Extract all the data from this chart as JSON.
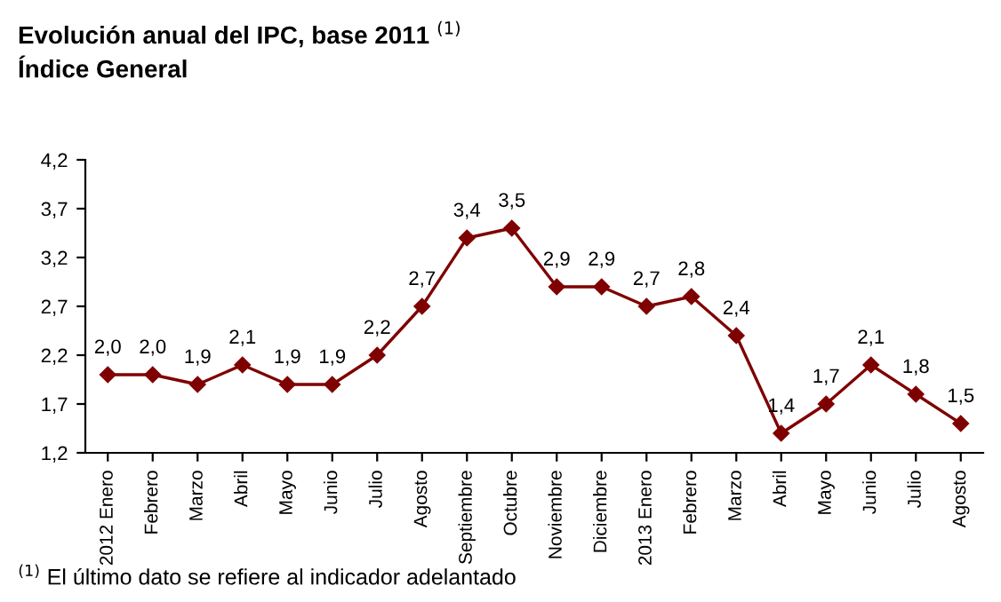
{
  "chart_data": {
    "type": "line",
    "title": "Evolución anual del IPC, base 2011 $^{(1)}$",
    "subtitle": "Índice General",
    "categories": [
      "2012 Enero",
      "Febrero",
      "Marzo",
      "Abril",
      "Mayo",
      "Junio",
      "Julio",
      "Agosto",
      "Septiembre",
      "Octubre",
      "Noviembre",
      "Diciembre",
      "2013 Enero",
      "Febrero",
      "Marzo",
      "Abril",
      "Mayo",
      "Junio",
      "Julio",
      "Agosto"
    ],
    "series": [
      {
        "color": "#7f0000",
        "values": [
          2.0,
          2.0,
          1.9,
          2.1,
          1.9,
          1.9,
          2.2,
          2.7,
          3.4,
          3.5,
          2.9,
          2.9,
          2.7,
          2.8,
          2.4,
          1.4,
          1.7,
          2.1,
          1.8,
          1.5
        ],
        "value_labels": [
          "2,0",
          "2,0",
          "1,9",
          "2,1",
          "1,9",
          "1,9",
          "2,2",
          "2,7",
          "3,4",
          "3,5",
          "2,9",
          "2,9",
          "2,7",
          "2,8",
          "2,4",
          "1,4",
          "1,7",
          "2,1",
          "1,8",
          "1,5"
        ]
      }
    ],
    "ylim": [
      1.2,
      4.2
    ],
    "yticks": [
      {
        "value": 1.2,
        "label": "1,2"
      },
      {
        "value": 1.7,
        "label": "1,7"
      },
      {
        "value": 2.2,
        "label": "2,2"
      },
      {
        "value": 2.7,
        "label": "2,7"
      },
      {
        "value": 3.2,
        "label": "3,2"
      },
      {
        "value": 3.7,
        "label": "3,7"
      },
      {
        "value": 4.2,
        "label": "4,2"
      }
    ],
    "marker": "diamond",
    "line_style": "solid",
    "grid": false,
    "legend": false,
    "annotations": [
      "$^{(1)}$ El último dato se refiere al indicador adelantado"
    ]
  }
}
